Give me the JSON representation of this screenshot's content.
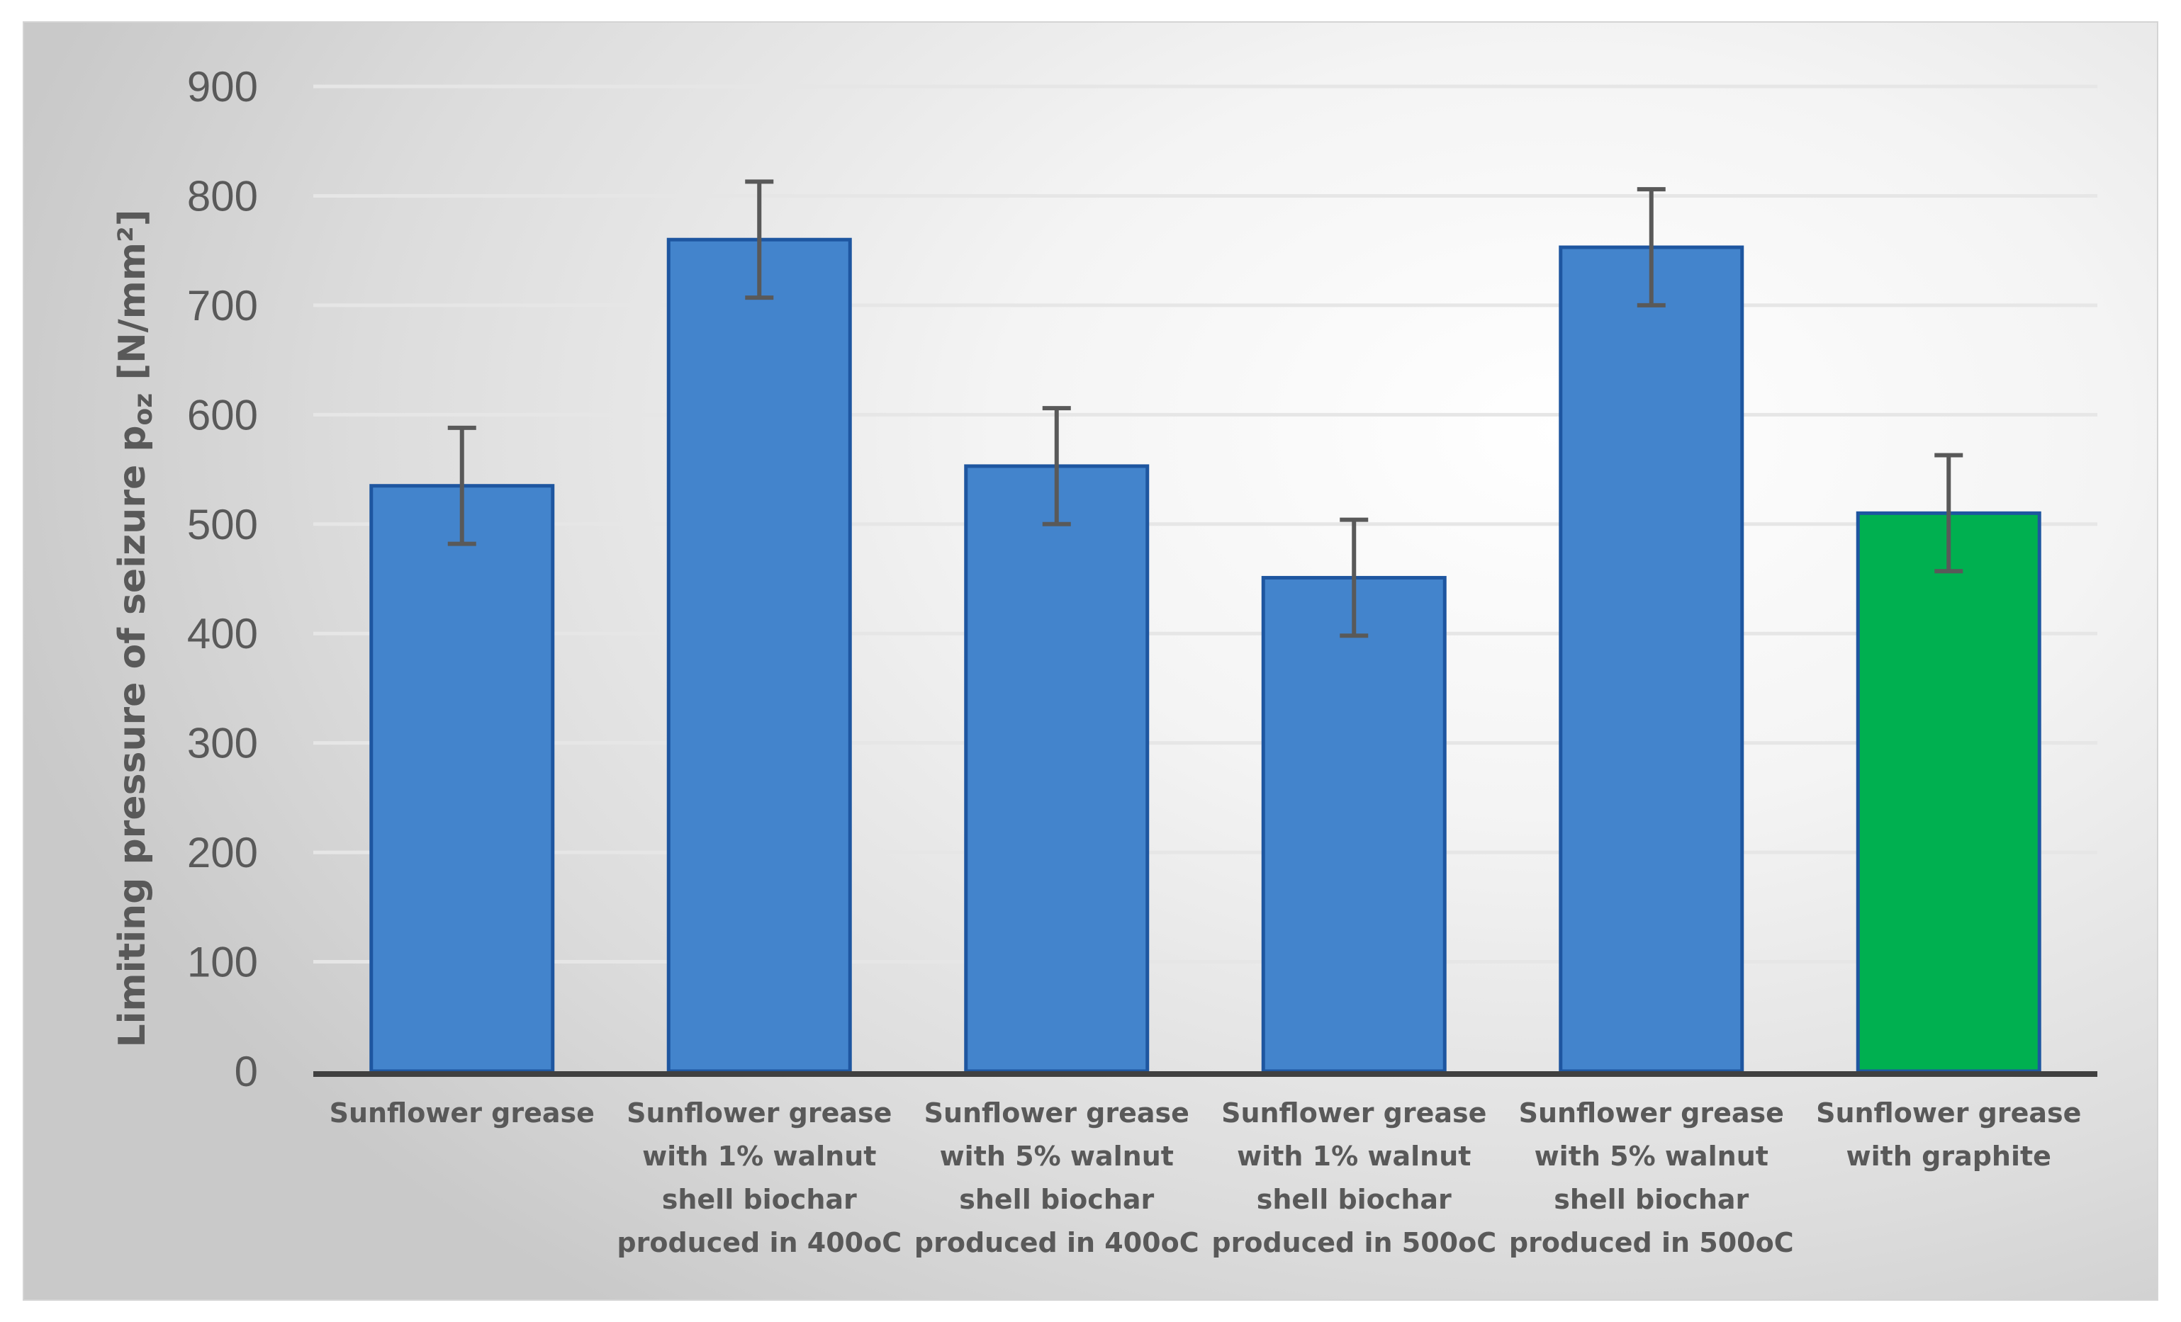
{
  "chart_data": {
    "type": "bar",
    "title": "",
    "xlabel": "",
    "ylabel": {
      "prefix": "Limiting pressure of seizure p",
      "subscript": "oz",
      "unit": " [N/mm²]"
    },
    "ylim": [
      0,
      900
    ],
    "yticks": [
      "0",
      "100",
      "200",
      "300",
      "400",
      "500",
      "600",
      "700",
      "800",
      "900"
    ],
    "grid": true,
    "legend": "none",
    "categories": [
      [
        "Sunflower grease"
      ],
      [
        "Sunflower grease",
        "with 1% walnut",
        "shell biochar",
        "produced in 400oC"
      ],
      [
        "Sunflower grease",
        "with 5% walnut",
        "shell biochar",
        "produced in 400oC"
      ],
      [
        "Sunflower grease",
        "with 1% walnut",
        "shell biochar",
        "produced in 500oC"
      ],
      [
        "Sunflower grease",
        "with 5% walnut",
        "shell biochar",
        "produced in 500oC"
      ],
      [
        "Sunflower grease",
        "with graphite"
      ]
    ],
    "values": [
      535,
      760,
      553,
      451,
      753,
      510
    ],
    "error": [
      53,
      53,
      53,
      53,
      53,
      53
    ],
    "colors": [
      "#4384CC",
      "#4384CC",
      "#4384CC",
      "#4384CC",
      "#4384CC",
      "#00B050"
    ],
    "border_color": "#1E56A0"
  }
}
